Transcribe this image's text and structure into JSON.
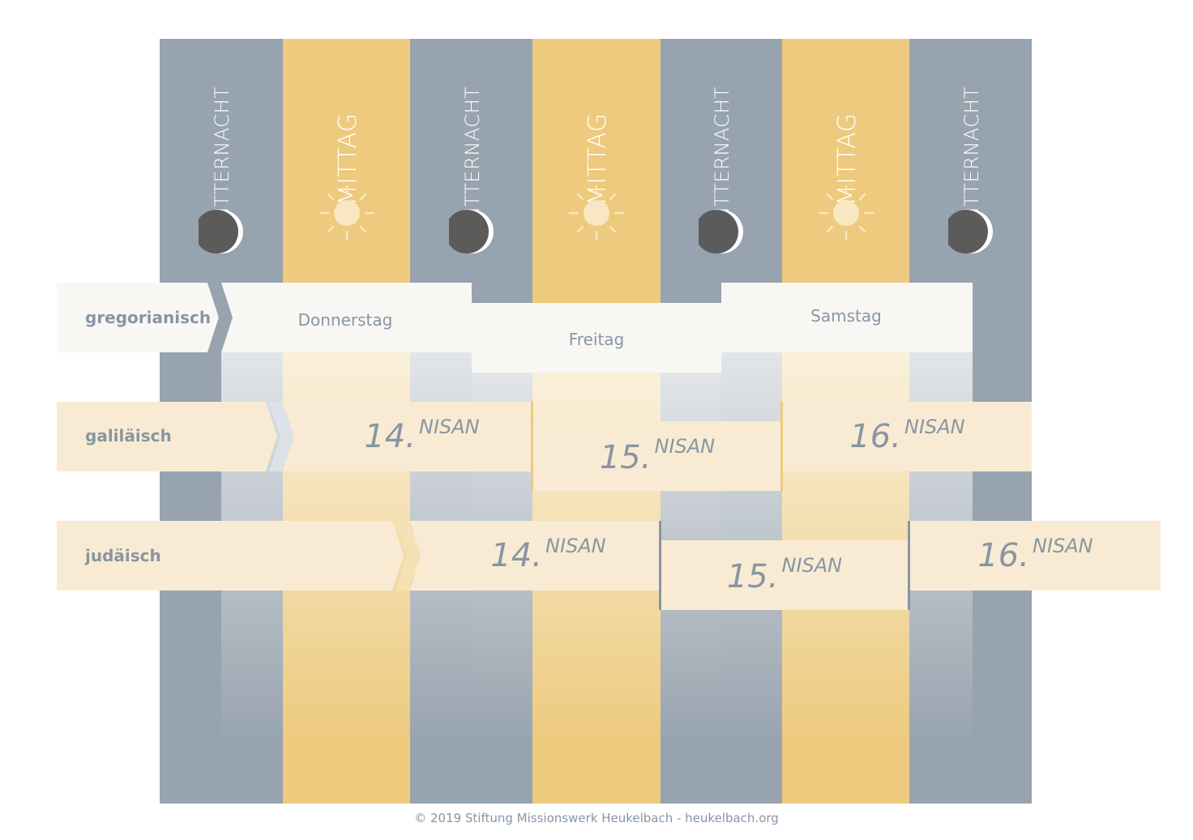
{
  "columns": [
    {
      "type": "night",
      "label": "MITTERNACHT",
      "icon": "moon-icon"
    },
    {
      "type": "noon",
      "label": "MITTAG",
      "icon": "sun-icon"
    },
    {
      "type": "night",
      "label": "MITTERNACHT",
      "icon": "moon-icon"
    },
    {
      "type": "noon",
      "label": "MITTAG",
      "icon": "sun-icon"
    },
    {
      "type": "night",
      "label": "MITTERNACHT",
      "icon": "moon-icon"
    },
    {
      "type": "noon",
      "label": "MITTAG",
      "icon": "sun-icon"
    },
    {
      "type": "night",
      "label": "MITTERNACHT",
      "icon": "moon-icon"
    }
  ],
  "rows": {
    "gregorian": {
      "label": "gregorianisch",
      "days": [
        "Donnerstag",
        "Freitag",
        "Samstag"
      ]
    },
    "galilean": {
      "label": "galiläisch",
      "days": [
        {
          "number": "14.",
          "month": "NISAN"
        },
        {
          "number": "15.",
          "month": "NISAN"
        },
        {
          "number": "16.",
          "month": "NISAN"
        }
      ]
    },
    "judean": {
      "label": "judäisch",
      "days": [
        {
          "number": "14.",
          "month": "NISAN"
        },
        {
          "number": "15.",
          "month": "NISAN"
        },
        {
          "number": "16.",
          "month": "NISAN"
        }
      ]
    }
  },
  "colors": {
    "night": "#97a3ae",
    "noon": "#edca7d",
    "gregorian_band": "#f9f7f4",
    "nisan_band": "#f9ebd3",
    "text": "#8896a3",
    "moon_dark": "#5b5b5b",
    "sun": "#f9e6c3"
  },
  "footer": "© 2019 Stiftung Missionswerk Heukelbach - heukelbach.org"
}
